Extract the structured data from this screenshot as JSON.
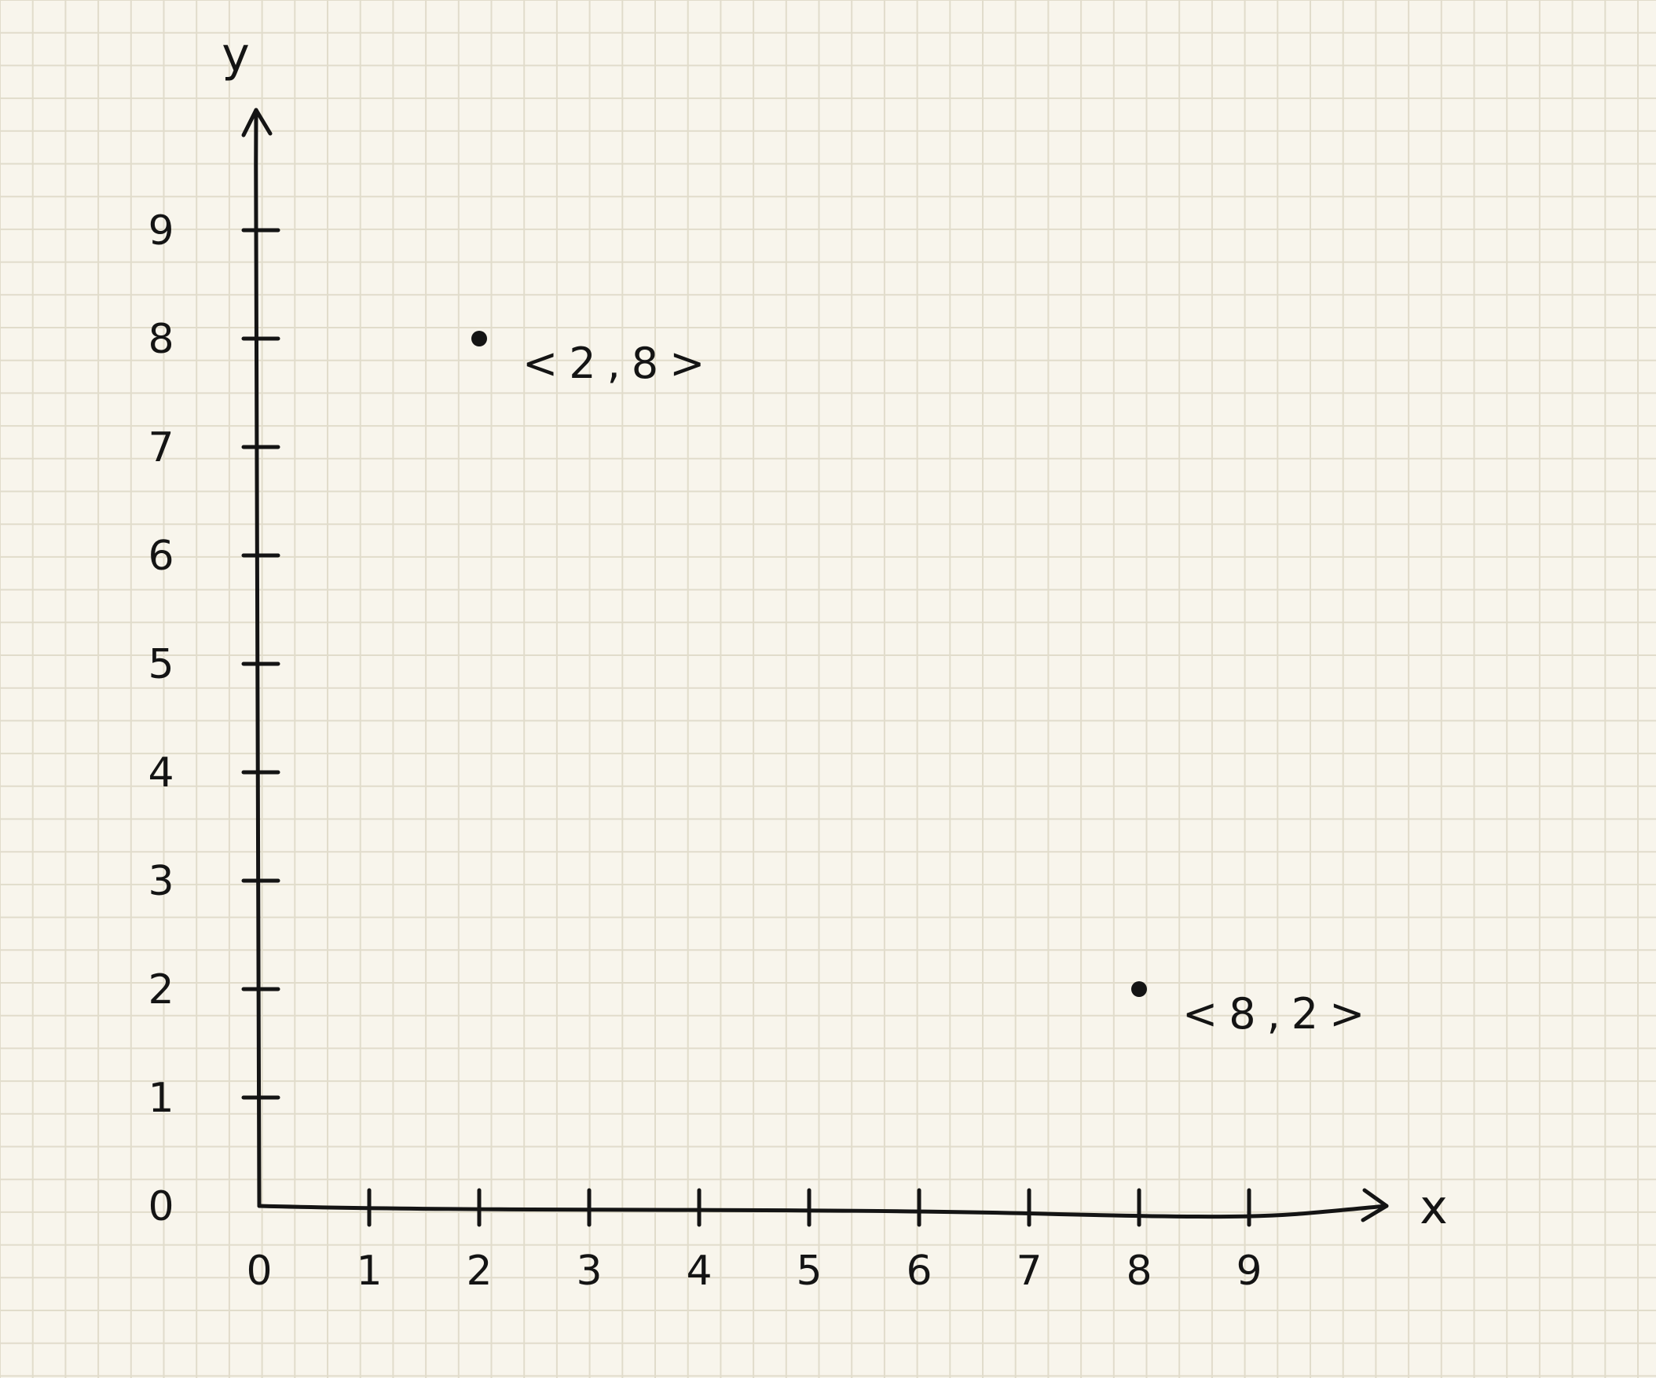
{
  "chart_data": {
    "type": "scatter",
    "title": "",
    "xlabel": "x",
    "ylabel": "y",
    "xlim": [
      0,
      10
    ],
    "ylim": [
      0,
      10
    ],
    "grid": true,
    "x_ticks": [
      "0",
      "1",
      "2",
      "3",
      "4",
      "5",
      "6",
      "7",
      "8",
      "9"
    ],
    "y_ticks": [
      "0",
      "1",
      "2",
      "3",
      "4",
      "5",
      "6",
      "7",
      "8",
      "9"
    ],
    "points": [
      {
        "x": 2,
        "y": 8,
        "label": "<2,8>"
      },
      {
        "x": 8,
        "y": 2,
        "label": "<8,2>"
      }
    ]
  },
  "colors": {
    "paper": "#f8f5ec",
    "grid": "#e1dccb",
    "ink": "#141414"
  }
}
